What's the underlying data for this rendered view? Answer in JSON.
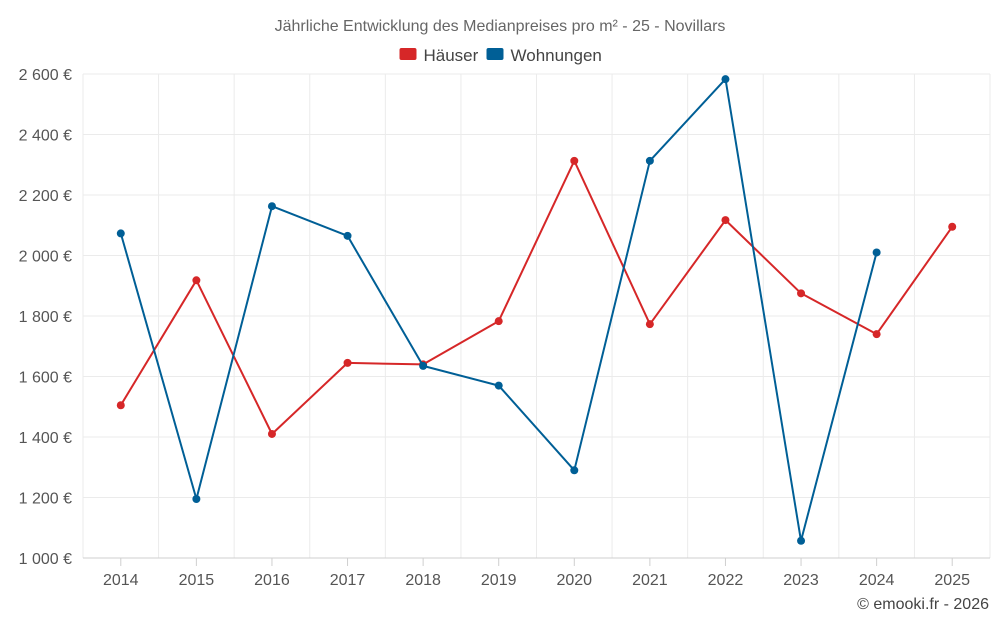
{
  "chart_data": {
    "type": "line",
    "title": "Jährliche Entwicklung des Medianpreises pro m² - 25 - Novillars",
    "xlabel": "",
    "ylabel": "",
    "categories": [
      "2014",
      "2015",
      "2016",
      "2017",
      "2018",
      "2019",
      "2020",
      "2021",
      "2022",
      "2023",
      "2024",
      "2025"
    ],
    "ylim": [
      1000,
      2600
    ],
    "yticks": [
      1000,
      1200,
      1400,
      1600,
      1800,
      2000,
      2200,
      2400,
      2600
    ],
    "y_tick_labels": [
      "1 000 €",
      "1 200 €",
      "1 400 €",
      "1 600 €",
      "1 800 €",
      "2 000 €",
      "2 200 €",
      "2 400 €",
      "2 600 €"
    ],
    "grid": true,
    "legend_position": "top-center",
    "series": [
      {
        "name": "Häuser",
        "color": "#d62728",
        "values": [
          1505,
          1918,
          1410,
          1645,
          1640,
          1783,
          2313,
          1773,
          2117,
          1875,
          1740,
          2095
        ]
      },
      {
        "name": "Wohnungen",
        "color": "#005f96",
        "values": [
          2073,
          1195,
          2163,
          2065,
          1635,
          1570,
          1290,
          2313,
          2583,
          1057,
          2010,
          null
        ]
      }
    ]
  },
  "footer": {
    "credit": "© emooki.fr - 2026"
  }
}
